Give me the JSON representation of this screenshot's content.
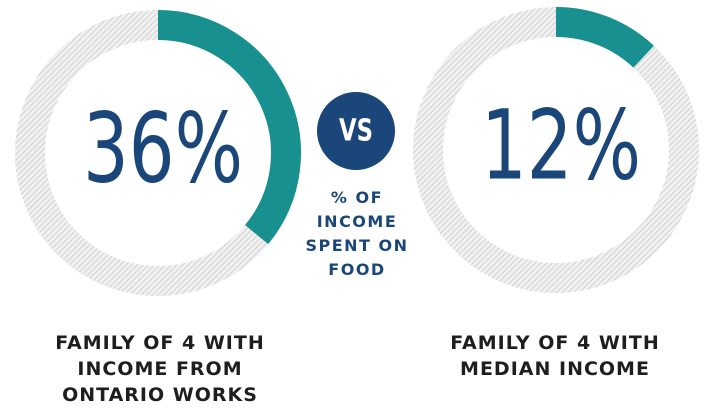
{
  "chart_data": [
    {
      "type": "donut",
      "values": [
        36
      ],
      "value_labels": [
        "36%"
      ],
      "color": "#17908f",
      "caption": "FAMILY OF 4 WITH INCOME FROM ONTARIO WORKS"
    },
    {
      "type": "donut",
      "values": [
        12
      ],
      "value_labels": [
        "12%"
      ],
      "color": "#17908f",
      "caption": "FAMILY OF 4 WITH MEDIAN INCOME"
    }
  ],
  "vs": "VS",
  "center_label": "% OF INCOME SPENT ON FOOD"
}
